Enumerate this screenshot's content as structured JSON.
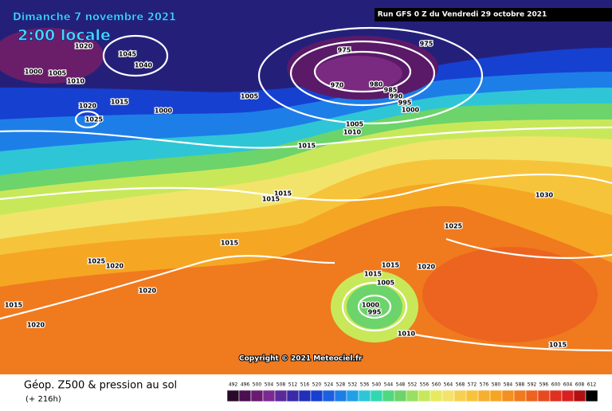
{
  "header": {
    "date": "Dimanche 7 novembre 2021",
    "time": "2:00 locale",
    "run": "Run GFS 0 Z du Vendredi 29 octobre 2021"
  },
  "copyright": "Copyright © 2021 Meteociel.fr",
  "footer": {
    "title": "Géop. Z500 & pression au sol",
    "lead": "(+ 216h)"
  },
  "legend": {
    "levels": [
      492,
      496,
      500,
      504,
      508,
      512,
      516,
      520,
      524,
      528,
      532,
      536,
      540,
      544,
      548,
      552,
      556,
      560,
      564,
      568,
      572,
      576,
      580,
      584,
      588,
      592,
      596,
      600,
      604,
      608,
      612
    ]
  },
  "isobar_labels": [
    1020,
    1045,
    1040,
    1000,
    1005,
    1010,
    1015,
    1020,
    1025,
    1000,
    975,
    975,
    970,
    980,
    985,
    990,
    995,
    1000,
    1005,
    1005,
    1010,
    1015,
    1015,
    1015,
    1030,
    1025,
    1015,
    1025,
    1020,
    1015,
    1020,
    1015,
    1005,
    1020,
    1000,
    995,
    1015,
    1020,
    1010,
    1015
  ]
}
